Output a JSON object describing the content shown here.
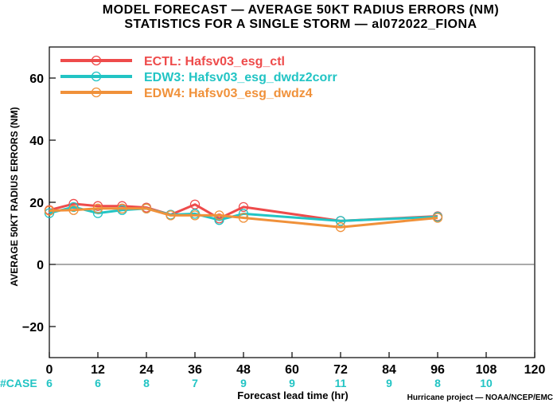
{
  "chart_data": {
    "type": "line",
    "title": "MODEL FORECAST — AVERAGE 50KT RADIUS ERRORS (NM)",
    "subtitle": "STATISTICS FOR A SINGLE STORM — al072022_FIONA",
    "xlabel": "Forecast lead time (hr)",
    "ylabel": "AVERAGE 50KT RADIUS ERRORS (NM)",
    "xlim": [
      0,
      120
    ],
    "ylim": [
      -30,
      70
    ],
    "xticks": [
      "0",
      "12",
      "24",
      "36",
      "48",
      "60",
      "72",
      "84",
      "96",
      "108",
      "120"
    ],
    "yticks": [
      "60",
      "40",
      "20",
      "0",
      "−20"
    ],
    "grid": false,
    "legend_position": "top-left",
    "series": [
      {
        "name": "ECTL: Hafsv03_esg_ctl",
        "color": "#ee4b4b",
        "x": [
          0,
          6,
          12,
          18,
          24,
          30,
          36,
          42,
          48,
          72,
          96
        ],
        "y": [
          17.5,
          19.5,
          18.8,
          18.8,
          18.3,
          16.0,
          19.3,
          14.8,
          18.5,
          14.0,
          15.5
        ]
      },
      {
        "name": "EDW3: Hafsv03_esg_dwdz2corr",
        "color": "#22c4c4",
        "x": [
          0,
          6,
          12,
          18,
          24,
          30,
          36,
          42,
          48,
          72,
          96
        ],
        "y": [
          16.5,
          18.5,
          16.5,
          17.5,
          18.0,
          16.0,
          16.3,
          14.3,
          16.3,
          14.0,
          15.3
        ]
      },
      {
        "name": "EDW4: Hafsv03_esg_dwdz4",
        "color": "#f0913a",
        "x": [
          0,
          6,
          12,
          18,
          24,
          30,
          36,
          42,
          48,
          72,
          96
        ],
        "y": [
          17.3,
          17.5,
          18.0,
          18.0,
          18.0,
          15.8,
          15.8,
          15.8,
          15.0,
          12.0,
          15.0
        ]
      }
    ],
    "cases": {
      "label": "#CASE",
      "x": [
        0,
        12,
        24,
        36,
        48,
        60,
        72,
        84,
        96,
        108
      ],
      "values": [
        "6",
        "6",
        "8",
        "7",
        "9",
        "9",
        "11",
        "9",
        "8",
        "10"
      ]
    },
    "credit": "Hurricane project — NOAA/NCEP/EMC"
  }
}
